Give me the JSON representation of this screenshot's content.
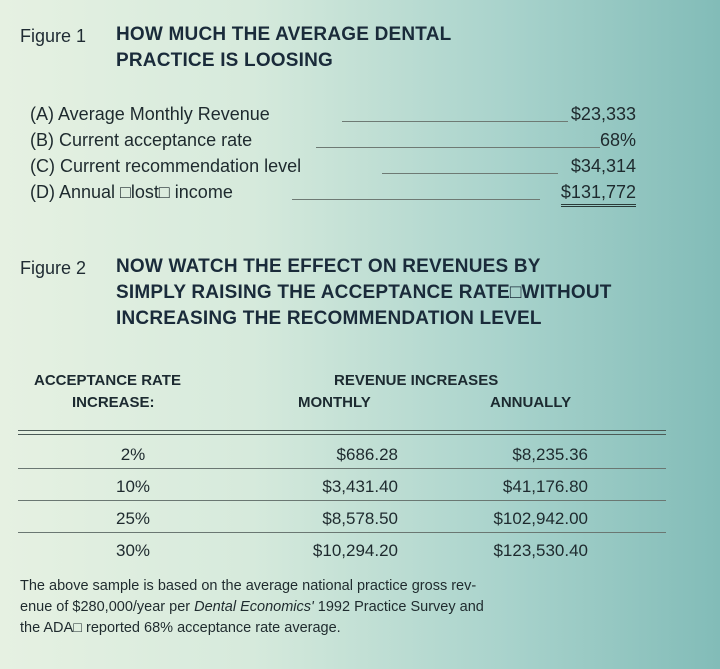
{
  "figure1": {
    "label": "Figure 1",
    "title_lines": [
      "HOW MUCH THE AVERAGE DENTAL",
      "PRACTICE IS LOOSING"
    ],
    "rows": [
      {
        "label": "(A) Average Monthly Revenue",
        "value": "$23,333"
      },
      {
        "label": "(B) Current acceptance rate",
        "value": "68%"
      },
      {
        "label": "(C) Current recommendation level",
        "value": "$34,314"
      },
      {
        "label": "(D) Annual □lost□ income",
        "value": "$131,772"
      }
    ]
  },
  "figure2": {
    "label": "Figure 2",
    "title_lines": [
      "NOW WATCH THE EFFECT ON REVENUES BY",
      "SIMPLY RAISING THE ACCEPTANCE RATE□WITHOUT",
      "INCREASING THE RECOMMENDATION LEVEL"
    ],
    "table": {
      "col1_header_line1": "ACCEPTANCE RATE",
      "col1_header_line2": "INCREASE:",
      "group_header": "REVENUE INCREASES",
      "col2_header": "MONTHLY",
      "col3_header": "ANNUALLY",
      "rows": [
        {
          "rate": "2%",
          "monthly": "$686.28",
          "annually": "$8,235.36"
        },
        {
          "rate": "10%",
          "monthly": "$3,431.40",
          "annually": "$41,176.80"
        },
        {
          "rate": "25%",
          "monthly": "$8,578.50",
          "annually": "$102,942.00"
        },
        {
          "rate": "30%",
          "monthly": "$10,294.20",
          "annually": "$123,530.40"
        }
      ]
    }
  },
  "footnote": {
    "part1": "The above sample is based on the average national practice gross rev-",
    "part2": "enue of $280,000/year per ",
    "journal": "Dental Economics'",
    "part3": " 1992 Practice Survey and",
    "part4": "the ADA□ reported 68% acceptance rate average."
  }
}
